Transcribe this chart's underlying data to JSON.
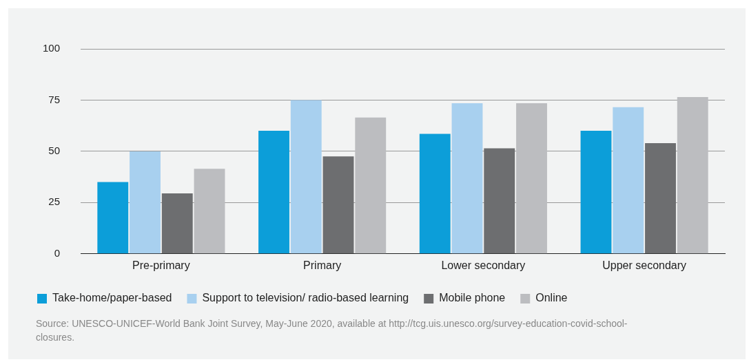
{
  "chart_data": {
    "type": "bar",
    "categories": [
      "Pre-primary",
      "Primary",
      "Lower secondary",
      "Upper secondary"
    ],
    "series": [
      {
        "name": "Take-home/paper-based",
        "color": "#0c9ed9",
        "values": [
          35,
          60,
          58.5,
          60
        ]
      },
      {
        "name": "Support to television/ radio-based learning",
        "color": "#a8d0ef",
        "values": [
          50,
          75,
          73.5,
          71.5
        ]
      },
      {
        "name": "Mobile phone",
        "color": "#6d6e70",
        "values": [
          29.5,
          47.5,
          51.5,
          54
        ]
      },
      {
        "name": "Online",
        "color": "#bcbdc0",
        "values": [
          41.5,
          66.5,
          73.5,
          76.5
        ]
      }
    ],
    "ylim": [
      0,
      100
    ],
    "yticks": [
      0,
      25,
      50,
      75,
      100
    ],
    "grid": "y",
    "legend": "bottom",
    "annotations": [
      "Source: UNESCO-UNICEF-World Bank Joint Survey, May-June 2020, available at http://tcg.uis.unesco.org/survey-education-covid-school-closures."
    ]
  }
}
